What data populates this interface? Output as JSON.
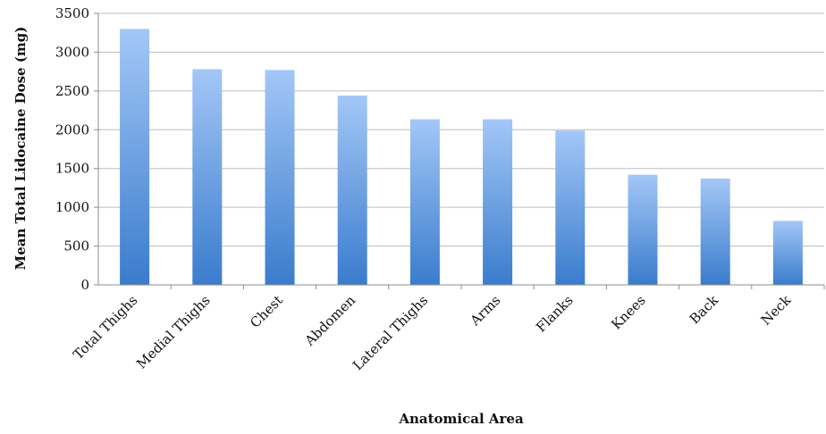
{
  "chart_data": {
    "type": "bar",
    "xlabel": "Anatomical Area",
    "ylabel": "Mean Total Lidocaine Dose (mg)",
    "categories": [
      "Total Thighs",
      "Medial Thighs",
      "Chest",
      "Abdomen",
      "Lateral Thighs",
      "Arms",
      "Flanks",
      "Knees",
      "Back",
      "Neck"
    ],
    "values": [
      3300,
      2780,
      2770,
      2440,
      2135,
      2135,
      1990,
      1420,
      1370,
      825
    ],
    "ylim": [
      0,
      3500
    ],
    "yticks": [
      0,
      500,
      1000,
      1500,
      2000,
      2500,
      3000,
      3500
    ],
    "grid": true,
    "legend": "none",
    "colors": {
      "bar_top": "#a3c7f7",
      "bar_bottom": "#3a7ccd",
      "grid": "#bdbdbd",
      "axis": "#8c8c8c"
    }
  }
}
